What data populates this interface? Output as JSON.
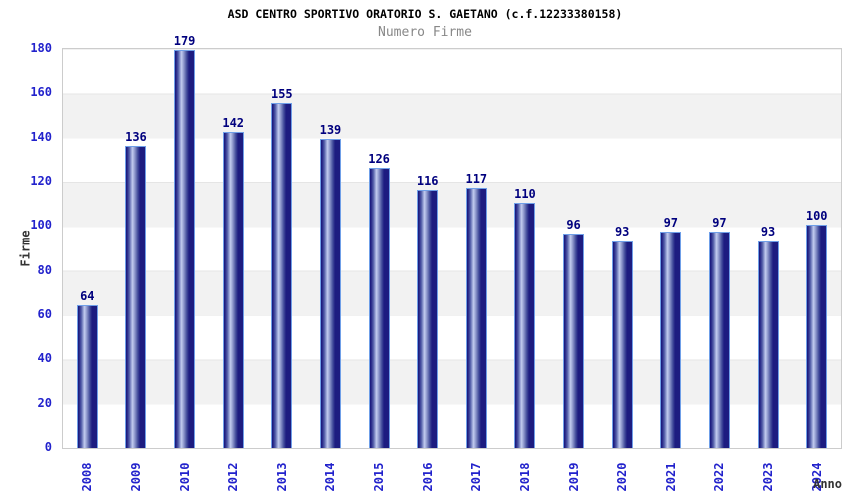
{
  "header": {
    "title": "ASD CENTRO SPORTIVO ORATORIO S. GAETANO (c.f.12233380158)",
    "subtitle": "Numero Firme"
  },
  "axes": {
    "y_title": "Firme",
    "x_title": "Anno",
    "y_ticks": [
      "0",
      "20",
      "40",
      "60",
      "80",
      "100",
      "120",
      "140",
      "160",
      "180"
    ]
  },
  "chart_data": {
    "type": "bar",
    "title": "ASD CENTRO SPORTIVO ORATORIO S. GAETANO (c.f.12233380158)",
    "subtitle": "Numero Firme",
    "xlabel": "Anno",
    "ylabel": "Firme",
    "categories": [
      "2008",
      "2009",
      "2010",
      "2012",
      "2013",
      "2014",
      "2015",
      "2016",
      "2017",
      "2018",
      "2019",
      "2020",
      "2021",
      "2022",
      "2023",
      "2024"
    ],
    "values": [
      64,
      136,
      179,
      142,
      155,
      139,
      126,
      116,
      117,
      110,
      96,
      93,
      97,
      97,
      93,
      100
    ],
    "ylim": [
      0,
      180
    ],
    "ytick_step": 20,
    "grid": "horizontal alternating white/gray bands every 20 units",
    "legend_position": "none",
    "bar_value_labels": true,
    "x_tick_rotation_deg": 90
  },
  "colors": {
    "tick_label_blue": "#2222cc",
    "value_label_navy": "#00007e",
    "axis_title_dark": "#333333",
    "title_black": "#000000",
    "subtitle_gray": "#888888",
    "band_gray": "#f2f2f2",
    "band_white": "#ffffff",
    "plot_border": "#cccccc",
    "bar_edge_dark": "#1d1c80",
    "bar_highlight": "#c3cdf0",
    "bar_outline": "#6f9fe8"
  }
}
